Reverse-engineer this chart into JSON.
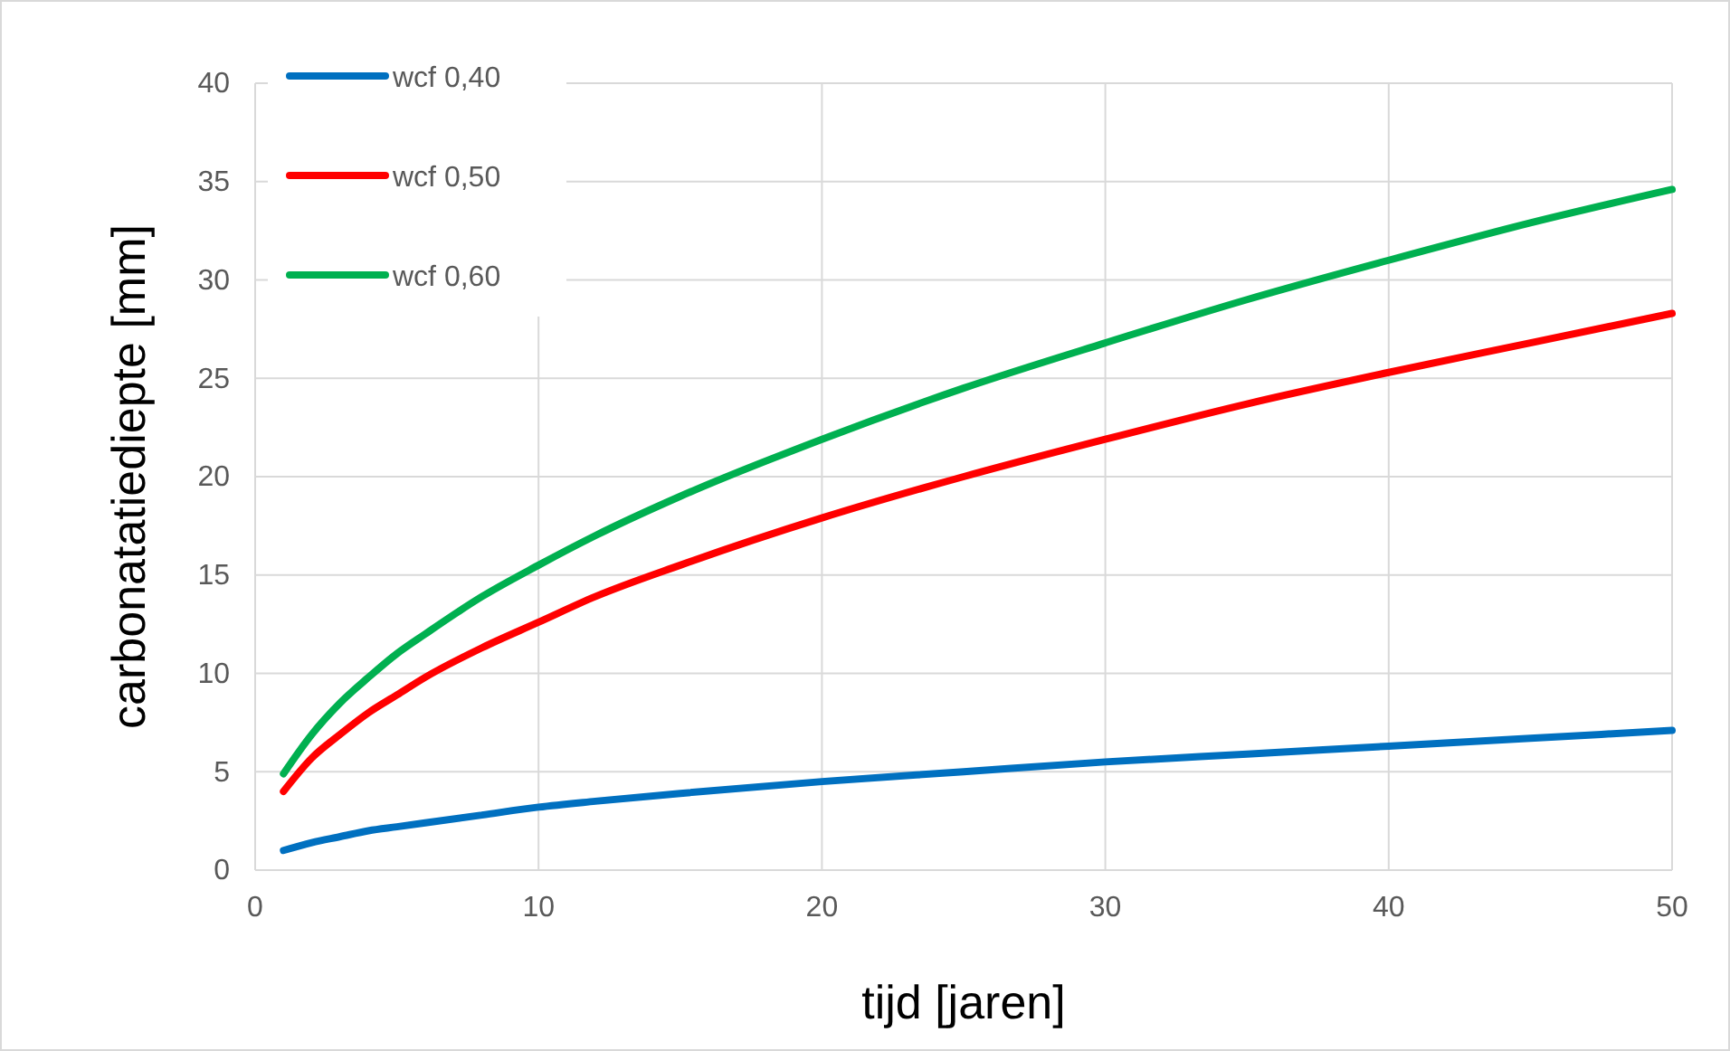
{
  "chart_data": {
    "type": "line",
    "xlabel": "tijd [jaren]",
    "ylabel": "carbonatatiediepte [mm]",
    "x": [
      1,
      2,
      3,
      4,
      5,
      6,
      8,
      10,
      12,
      15,
      20,
      25,
      30,
      35,
      40,
      45,
      50
    ],
    "series": [
      {
        "name": "wcf 0,40",
        "color": "#0070c0",
        "values": [
          1,
          1.4,
          1.7,
          2,
          2.2,
          2.4,
          2.8,
          3.2,
          3.5,
          3.9,
          4.5,
          5,
          5.5,
          5.9,
          6.3,
          6.7,
          7.1
        ]
      },
      {
        "name": "wcf 0,50",
        "color": "#ff0000",
        "values": [
          4,
          5.7,
          6.9,
          8,
          8.9,
          9.8,
          11.3,
          12.6,
          13.9,
          15.5,
          17.9,
          20,
          21.9,
          23.7,
          25.3,
          26.8,
          28.3
        ]
      },
      {
        "name": "wcf 0,60",
        "color": "#00b050",
        "values": [
          4.9,
          6.9,
          8.5,
          9.8,
          11,
          12,
          13.9,
          15.5,
          17,
          19,
          21.9,
          24.5,
          26.8,
          29,
          31,
          32.9,
          34.6
        ]
      }
    ],
    "xlim": [
      0,
      50
    ],
    "xticks": [
      0,
      10,
      20,
      30,
      40,
      50
    ],
    "ylim": [
      0,
      40
    ],
    "yticks": [
      0,
      5,
      10,
      15,
      20,
      25,
      30,
      35,
      40
    ],
    "grid": true,
    "legend": "top left",
    "marker": "none",
    "line_style": "solid"
  }
}
